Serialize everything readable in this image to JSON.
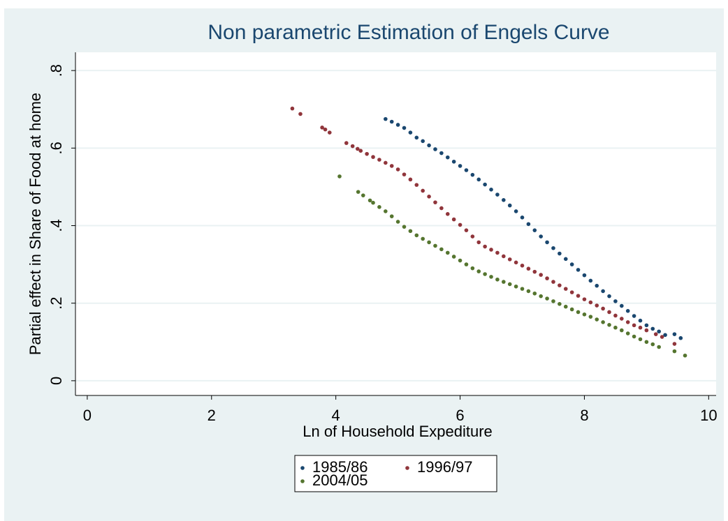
{
  "chart_data": {
    "type": "scatter",
    "title": "Non parametric Estimation of Engels Curve",
    "x_label": "Ln of Household Expediture",
    "y_label": "Partial effect in Share of Food at home",
    "xlim": [
      -0.19,
      10.12
    ],
    "ylim": [
      -0.038,
      0.847
    ],
    "xticks": [
      0,
      2,
      4,
      6,
      8,
      10
    ],
    "yticks": [
      0,
      {
        "value": 0.2,
        "label": ".2"
      },
      {
        "value": 0.4,
        "label": ".4"
      },
      {
        "value": 0.6,
        "label": ".6"
      },
      {
        "value": 0.8,
        "label": ".8"
      }
    ],
    "grid": true,
    "legend": "bottom",
    "series": [
      {
        "name": "1985/86",
        "color": "#1a476f",
        "x": [
          4.8,
          4.9,
          5.0,
          5.1,
          5.2,
          5.3,
          5.4,
          5.5,
          5.6,
          5.7,
          5.8,
          5.9,
          6.0,
          6.1,
          6.2,
          6.3,
          6.4,
          6.5,
          6.6,
          6.7,
          6.8,
          6.9,
          7.0,
          7.1,
          7.2,
          7.3,
          7.4,
          7.5,
          7.6,
          7.7,
          7.8,
          7.9,
          8.0,
          8.1,
          8.2,
          8.3,
          8.4,
          8.5,
          8.6,
          8.7,
          8.8,
          8.9,
          9.0,
          9.1,
          9.2,
          9.3,
          9.45,
          9.55
        ],
        "values": [
          0.675,
          0.668,
          0.66,
          0.652,
          0.64,
          0.627,
          0.618,
          0.607,
          0.597,
          0.587,
          0.576,
          0.565,
          0.554,
          0.543,
          0.531,
          0.519,
          0.506,
          0.493,
          0.48,
          0.466,
          0.452,
          0.437,
          0.421,
          0.404,
          0.388,
          0.372,
          0.357,
          0.342,
          0.328,
          0.314,
          0.3,
          0.286,
          0.272,
          0.258,
          0.245,
          0.231,
          0.218,
          0.205,
          0.193,
          0.18,
          0.167,
          0.155,
          0.143,
          0.134,
          0.127,
          0.118,
          0.12,
          0.11
        ]
      },
      {
        "name": "1996/97",
        "color": "#90353b",
        "x": [
          3.3,
          3.43,
          3.78,
          3.83,
          3.9,
          4.17,
          4.27,
          4.35,
          4.4,
          4.5,
          4.6,
          4.7,
          4.8,
          4.9,
          5.0,
          5.1,
          5.2,
          5.3,
          5.4,
          5.5,
          5.6,
          5.7,
          5.8,
          5.9,
          6.0,
          6.1,
          6.2,
          6.3,
          6.4,
          6.5,
          6.6,
          6.7,
          6.8,
          6.9,
          7.0,
          7.1,
          7.2,
          7.3,
          7.4,
          7.5,
          7.6,
          7.7,
          7.8,
          7.9,
          8.0,
          8.1,
          8.2,
          8.3,
          8.4,
          8.5,
          8.6,
          8.7,
          8.8,
          8.9,
          9.0,
          9.15,
          9.25,
          9.45
        ],
        "values": [
          0.702,
          0.688,
          0.653,
          0.648,
          0.64,
          0.613,
          0.605,
          0.598,
          0.593,
          0.585,
          0.577,
          0.57,
          0.562,
          0.554,
          0.545,
          0.532,
          0.519,
          0.505,
          0.49,
          0.475,
          0.46,
          0.445,
          0.43,
          0.416,
          0.402,
          0.388,
          0.372,
          0.357,
          0.346,
          0.338,
          0.33,
          0.321,
          0.313,
          0.305,
          0.297,
          0.289,
          0.281,
          0.273,
          0.264,
          0.255,
          0.246,
          0.237,
          0.228,
          0.219,
          0.21,
          0.202,
          0.194,
          0.186,
          0.177,
          0.168,
          0.16,
          0.151,
          0.143,
          0.137,
          0.13,
          0.12,
          0.113,
          0.095
        ]
      },
      {
        "name": "2004/05",
        "color": "#55752f",
        "x": [
          4.06,
          4.36,
          4.44,
          4.55,
          4.6,
          4.7,
          4.8,
          4.9,
          5.0,
          5.1,
          5.2,
          5.3,
          5.4,
          5.5,
          5.6,
          5.7,
          5.8,
          5.9,
          6.0,
          6.1,
          6.2,
          6.3,
          6.4,
          6.5,
          6.6,
          6.7,
          6.8,
          6.9,
          7.0,
          7.1,
          7.2,
          7.3,
          7.4,
          7.5,
          7.6,
          7.7,
          7.8,
          7.9,
          8.0,
          8.1,
          8.2,
          8.3,
          8.4,
          8.5,
          8.6,
          8.7,
          8.8,
          8.9,
          9.0,
          9.1,
          9.2,
          9.45,
          9.62
        ],
        "values": [
          0.527,
          0.487,
          0.478,
          0.465,
          0.459,
          0.448,
          0.437,
          0.424,
          0.41,
          0.397,
          0.386,
          0.375,
          0.366,
          0.357,
          0.348,
          0.339,
          0.33,
          0.32,
          0.31,
          0.3,
          0.29,
          0.282,
          0.275,
          0.268,
          0.261,
          0.255,
          0.249,
          0.243,
          0.237,
          0.231,
          0.225,
          0.218,
          0.212,
          0.205,
          0.198,
          0.191,
          0.184,
          0.177,
          0.171,
          0.165,
          0.158,
          0.151,
          0.144,
          0.137,
          0.13,
          0.122,
          0.114,
          0.107,
          0.1,
          0.094,
          0.087,
          0.076,
          0.065
        ]
      }
    ]
  }
}
